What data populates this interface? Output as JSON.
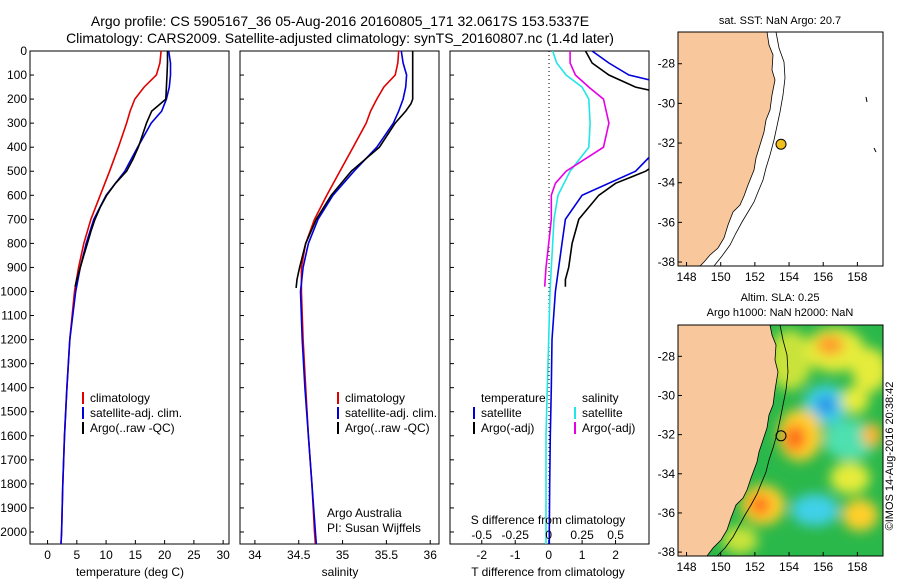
{
  "header": {
    "line1": "Argo profile: CS 5905167_36 05-Aug-2016 20160805_171 32.0617S 153.5337E",
    "line2": "Climatology: CARS2009. Satellite-adjusted climatology: synTS_20160807.nc (1.4d later)"
  },
  "depth_ticks": [
    "0",
    "100",
    "200",
    "300",
    "400",
    "500",
    "600",
    "700",
    "800",
    "900",
    "1000",
    "1100",
    "1200",
    "1300",
    "1400",
    "1500",
    "1600",
    "1700",
    "1800",
    "1900",
    "2000"
  ],
  "colors": {
    "climatology": "#e00000",
    "satellite": "#0000dd",
    "argo": "#000000",
    "sat_salinity": "#22e6e6",
    "argo_salinity": "#e600e6",
    "land": "#f8c89c"
  },
  "chart_data": [
    {
      "type": "line",
      "panel": "temperature",
      "xlabel": "temperature (deg C)",
      "xticks": [
        "0",
        "5",
        "10",
        "15",
        "20",
        "25",
        "30"
      ],
      "xlim": [
        -3,
        31
      ],
      "ylim": [
        2050,
        0
      ],
      "legend": [
        "climatology",
        "satellite-adj. clim.",
        "Argo(..raw -QC)"
      ],
      "series": [
        {
          "name": "climatology",
          "depth": [
            0,
            50,
            100,
            150,
            200,
            250,
            300,
            400,
            500,
            600,
            700,
            800,
            900,
            1000,
            1200,
            1400,
            1600,
            1800,
            2000,
            2050
          ],
          "values": [
            19.4,
            19.2,
            18.6,
            16.5,
            14.9,
            14.1,
            13.5,
            12.1,
            10.6,
            9.0,
            7.4,
            6.2,
            5.3,
            4.6,
            3.8,
            3.3,
            2.9,
            2.6,
            2.4,
            2.3
          ]
        },
        {
          "name": "satellite-adj. clim.",
          "depth": [
            0,
            50,
            100,
            150,
            200,
            250,
            300,
            400,
            500,
            600,
            700,
            800,
            900,
            1000,
            1200,
            1400,
            1600,
            1800,
            2000,
            2050
          ],
          "values": [
            20.7,
            21.0,
            21.0,
            20.8,
            20.3,
            19.5,
            17.7,
            15.4,
            13.2,
            10.0,
            7.9,
            6.6,
            5.6,
            4.8,
            3.8,
            3.3,
            2.9,
            2.6,
            2.4,
            2.3
          ]
        },
        {
          "name": "Argo(..raw -QC)",
          "depth": [
            0,
            50,
            100,
            150,
            200,
            225,
            250,
            300,
            350,
            400,
            450,
            500,
            550,
            600,
            650,
            700,
            750,
            800,
            850,
            900,
            950,
            980
          ],
          "values": [
            20.5,
            20.5,
            20.4,
            20.3,
            20.2,
            19.0,
            17.8,
            16.9,
            16.2,
            15.5,
            14.6,
            13.5,
            11.6,
            10.1,
            9.0,
            8.1,
            7.4,
            6.8,
            6.2,
            5.6,
            5.0,
            4.7
          ]
        }
      ]
    },
    {
      "type": "line",
      "panel": "salinity",
      "xlabel": "salinity",
      "xticks": [
        "34",
        "34.5",
        "35",
        "35.5",
        "36"
      ],
      "xlim": [
        33.83,
        36.1
      ],
      "ylim": [
        2050,
        0
      ],
      "legend": [
        "climatology",
        "satellite-adj. clim.",
        "Argo(..raw -QC)"
      ],
      "annotation": [
        "Argo Australia",
        "PI: Susan Wijffels"
      ],
      "series": [
        {
          "name": "climatology",
          "depth": [
            0,
            50,
            100,
            150,
            200,
            250,
            300,
            400,
            500,
            600,
            700,
            800,
            900,
            1000,
            1200,
            1400,
            1600,
            1800,
            2000,
            2050
          ],
          "values": [
            35.64,
            35.63,
            35.6,
            35.47,
            35.39,
            35.32,
            35.27,
            35.12,
            34.97,
            34.82,
            34.68,
            34.58,
            34.53,
            34.53,
            34.55,
            34.58,
            34.61,
            34.65,
            34.68,
            34.69
          ]
        },
        {
          "name": "satellite-adj. clim.",
          "depth": [
            0,
            50,
            100,
            150,
            200,
            250,
            300,
            400,
            500,
            600,
            700,
            800,
            900,
            1000,
            1200,
            1400,
            1600,
            1800,
            2000,
            2050
          ],
          "values": [
            35.67,
            35.69,
            35.73,
            35.72,
            35.69,
            35.64,
            35.58,
            35.39,
            35.13,
            34.89,
            34.72,
            34.61,
            34.55,
            34.52,
            34.54,
            34.57,
            34.61,
            34.65,
            34.69,
            34.7
          ]
        },
        {
          "name": "Argo(..raw -QC)",
          "depth": [
            0,
            50,
            100,
            150,
            200,
            220,
            250,
            300,
            400,
            500,
            600,
            700,
            800,
            900,
            950,
            985
          ],
          "values": [
            35.8,
            35.8,
            35.8,
            35.8,
            35.8,
            35.78,
            35.72,
            35.6,
            35.42,
            35.1,
            34.87,
            34.7,
            34.58,
            34.51,
            34.48,
            34.47
          ]
        }
      ]
    },
    {
      "type": "line",
      "panel": "difference",
      "xlabel": "T difference from climatology",
      "xticks": [
        "-2",
        "-1",
        "0",
        "1",
        "2"
      ],
      "xlabel_top": "S difference from climatology",
      "xticks_top": [
        "-0.5",
        "-0.25",
        "0",
        "0.25",
        "0.5"
      ],
      "xlim": [
        -2.95,
        3
      ],
      "ylim": [
        2050,
        0
      ],
      "legend_headers": [
        "temperature",
        "salinity"
      ],
      "legend": [
        "satellite",
        "Argo(-adj)",
        "satellite",
        "Argo(-adj)"
      ],
      "series": [
        {
          "name": "satellite",
          "quantity": "temperature",
          "depth": [
            0,
            50,
            100,
            200,
            300,
            400,
            500,
            600,
            700,
            800,
            900,
            1000,
            1200,
            1400,
            1600,
            1800,
            2000,
            2050
          ],
          "values": [
            1.3,
            1.8,
            2.4,
            5.4,
            4.2,
            3.3,
            2.6,
            1.0,
            0.5,
            0.4,
            0.3,
            0.2,
            0.1,
            0.08,
            0.05,
            0.03,
            0.02,
            0.02
          ]
        },
        {
          "name": "Argo(-adj)",
          "quantity": "temperature",
          "depth": [
            0,
            50,
            100,
            150,
            200,
            250,
            300,
            500,
            550,
            600,
            650,
            700,
            800,
            900,
            950,
            980
          ],
          "values": [
            1.1,
            1.3,
            1.8,
            2.6,
            4.2,
            4.7,
            5.0,
            2.9,
            2.0,
            1.5,
            1.2,
            0.9,
            0.7,
            0.6,
            0.5,
            0.5
          ]
        },
        {
          "name": "satellite",
          "quantity": "salinity",
          "depth": [
            0,
            50,
            100,
            150,
            200,
            300,
            400,
            500,
            600,
            700,
            800,
            900,
            1000,
            1200,
            1400,
            1600,
            1800,
            2000,
            2050
          ],
          "values": [
            0.03,
            0.06,
            0.13,
            0.25,
            0.3,
            0.31,
            0.3,
            0.16,
            0.07,
            0.04,
            0.03,
            0.02,
            0.01,
            0.0,
            -0.01,
            -0.02,
            -0.02,
            -0.02,
            -0.02
          ]
        },
        {
          "name": "Argo(-adj)",
          "quantity": "salinity",
          "depth": [
            0,
            50,
            100,
            150,
            200,
            300,
            400,
            500,
            550,
            600,
            700,
            800,
            900,
            980
          ],
          "values": [
            0.16,
            0.16,
            0.2,
            0.3,
            0.41,
            0.45,
            0.41,
            0.13,
            0.05,
            0.02,
            0.02,
            0.0,
            -0.02,
            -0.03
          ]
        }
      ]
    }
  ],
  "maps": {
    "sst": {
      "title": "sat. SST: NaN Argo: 20.7",
      "lon_ticks": [
        "148",
        "150",
        "152",
        "154",
        "156",
        "158"
      ],
      "lat_ticks": [
        "-28",
        "-30",
        "-32",
        "-34",
        "-36",
        "-38"
      ],
      "lon_range": [
        147.5,
        159.5
      ],
      "lat_range": [
        -38.2,
        -26.4
      ],
      "float": {
        "lon": 153.53,
        "lat": -32.06
      }
    },
    "sla": {
      "title1": "Altim. SLA: 0.25",
      "title2": "Argo h1000: NaN h2000: NaN",
      "lon_ticks": [
        "148",
        "150",
        "152",
        "154",
        "156",
        "158"
      ],
      "lat_ticks": [
        "-28",
        "-30",
        "-32",
        "-34",
        "-36",
        "-38"
      ],
      "lon_range": [
        147.5,
        159.5
      ],
      "lat_range": [
        -38.2,
        -26.4
      ],
      "float": {
        "lon": 153.53,
        "lat": -32.06
      }
    }
  },
  "credit": "©IMOS 14-Aug-2016 20:38:42"
}
